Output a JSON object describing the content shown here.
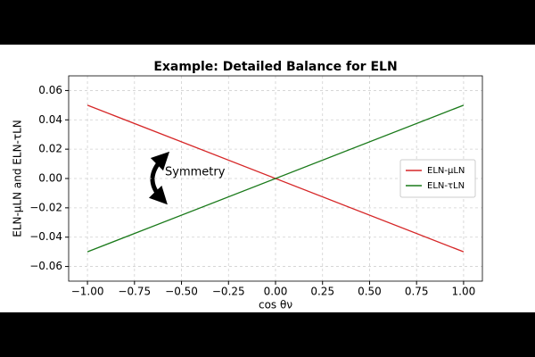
{
  "chart_data": {
    "type": "line",
    "title": "Example: Detailed Balance for ELN",
    "x_label": "cos θν",
    "y_label": "ELN-μLN and ELN-τLN",
    "x": [
      -1,
      1
    ],
    "series": [
      {
        "name": "ELN-μLN",
        "color": "#d62728",
        "values": [
          0.05,
          -0.05
        ]
      },
      {
        "name": "ELN-τLN",
        "color": "#1a7a1a",
        "values": [
          -0.05,
          0.05
        ]
      }
    ],
    "annotation": "Symmetry",
    "xlim": [
      -1.1,
      1.1
    ],
    "ylim": [
      -0.07,
      0.07
    ],
    "xticks": [
      {
        "value": -1,
        "label": "−1.00"
      },
      {
        "value": -0.75,
        "label": "−0.75"
      },
      {
        "value": -0.5,
        "label": "−0.50"
      },
      {
        "value": -0.25,
        "label": "−0.25"
      },
      {
        "value": 0,
        "label": "0.00"
      },
      {
        "value": 0.25,
        "label": "0.25"
      },
      {
        "value": 0.5,
        "label": "0.50"
      },
      {
        "value": 0.75,
        "label": "0.75"
      },
      {
        "value": 1,
        "label": "1.00"
      }
    ],
    "yticks": [
      {
        "value": -0.06,
        "label": "−0.06"
      },
      {
        "value": -0.04,
        "label": "−0.04"
      },
      {
        "value": -0.02,
        "label": "−0.02"
      },
      {
        "value": 0,
        "label": "0.00"
      },
      {
        "value": 0.02,
        "label": "0.02"
      },
      {
        "value": 0.04,
        "label": "0.04"
      },
      {
        "value": 0.06,
        "label": "0.06"
      }
    ],
    "grid": true,
    "legend": "right"
  }
}
